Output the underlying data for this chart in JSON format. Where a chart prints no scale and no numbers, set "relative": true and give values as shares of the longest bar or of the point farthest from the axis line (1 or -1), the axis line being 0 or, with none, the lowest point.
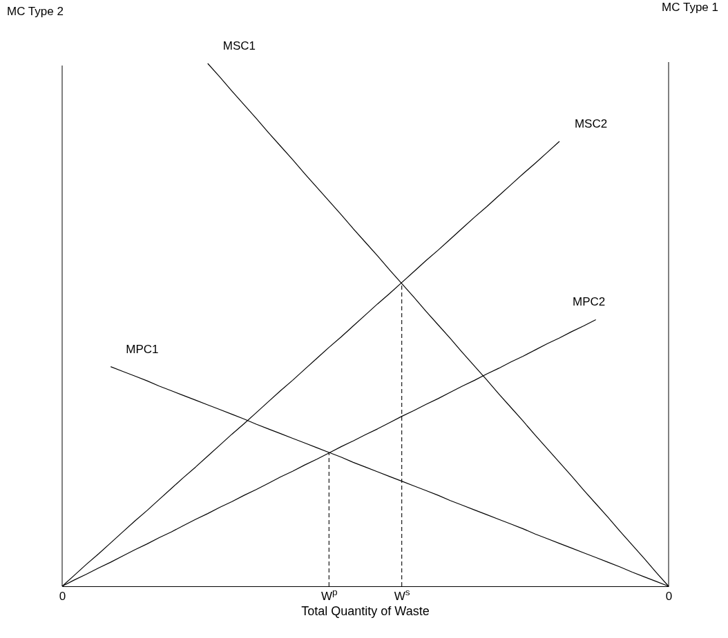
{
  "chart_data": {
    "type": "line",
    "relative": true,
    "xlabel": "Total Quantity of Waste",
    "ylabel": "MC Type 2",
    "y2label": "MC Type 1",
    "categories": [
      "0",
      null,
      null,
      null,
      null,
      null,
      null,
      null,
      null,
      null,
      null,
      null,
      null,
      null,
      null,
      null,
      null,
      null,
      null,
      null,
      null,
      null,
      "W$^{p}$",
      null,
      null,
      null,
      null,
      null,
      "W$^{s}$",
      null,
      null,
      null,
      null,
      null,
      null,
      null,
      null,
      null,
      null,
      null,
      null,
      null,
      null,
      null,
      null,
      null,
      null,
      null,
      null,
      null,
      "0"
    ],
    "series": [
      {
        "name": "MSC1",
        "color": "#000000",
        "values": [
          null,
          null,
          null,
          null,
          null,
          null,
          null,
          null,
          null,
          null,
          null,
          null,
          1,
          0.974,
          0.947,
          0.921,
          0.895,
          0.868,
          0.842,
          0.816,
          0.789,
          0.763,
          0.737,
          0.711,
          0.684,
          0.658,
          0.632,
          0.605,
          0.579,
          0.553,
          0.526,
          0.5,
          0.474,
          0.447,
          0.421,
          0.395,
          0.368,
          0.342,
          0.316,
          0.289,
          0.263,
          0.237,
          0.211,
          0.184,
          0.158,
          0.132,
          0.105,
          0.079,
          0.053,
          0.026,
          0
        ]
      },
      {
        "name": "MSC2",
        "color": "#000000",
        "values": [
          0,
          0.021,
          0.042,
          0.062,
          0.083,
          0.104,
          0.125,
          0.145,
          0.166,
          0.187,
          0.208,
          0.228,
          0.249,
          0.27,
          0.291,
          0.311,
          0.332,
          0.353,
          0.374,
          0.394,
          0.415,
          0.436,
          0.457,
          0.477,
          0.498,
          0.519,
          0.54,
          0.56,
          0.581,
          0.602,
          0.623,
          0.643,
          0.664,
          0.685,
          0.706,
          0.726,
          0.747,
          0.768,
          0.789,
          0.809,
          0.83,
          0.851,
          null,
          null,
          null,
          null,
          null,
          null,
          null,
          null,
          null
        ]
      },
      {
        "name": "MPC2",
        "color": "#000000",
        "values": [
          0,
          0.012,
          0.023,
          0.035,
          0.046,
          0.058,
          0.07,
          0.081,
          0.093,
          0.104,
          0.116,
          0.128,
          0.139,
          0.151,
          0.162,
          0.174,
          0.185,
          0.197,
          0.209,
          0.22,
          0.232,
          0.243,
          0.255,
          0.267,
          0.278,
          0.29,
          0.301,
          0.313,
          0.325,
          0.336,
          0.348,
          0.359,
          0.371,
          0.383,
          0.394,
          0.406,
          0.417,
          0.429,
          0.44,
          0.452,
          0.464,
          0.475,
          0.487,
          0.498,
          0.51,
          null,
          null,
          null,
          null,
          null,
          null
        ]
      },
      {
        "name": "MPC1",
        "color": "#000000",
        "values": [
          null,
          null,
          null,
          null,
          0.42,
          0.411,
          0.402,
          0.393,
          0.383,
          0.374,
          0.365,
          0.356,
          0.347,
          0.338,
          0.329,
          0.32,
          0.31,
          0.301,
          0.292,
          0.283,
          0.274,
          0.265,
          0.256,
          0.247,
          0.237,
          0.228,
          0.219,
          0.21,
          0.201,
          0.192,
          0.183,
          0.174,
          0.164,
          0.155,
          0.146,
          0.137,
          0.128,
          0.119,
          0.11,
          0.1,
          0.091,
          0.082,
          0.073,
          0.064,
          0.055,
          0.046,
          0.037,
          0.027,
          0.018,
          0.009,
          0
        ]
      }
    ],
    "ref_lines": [
      {
        "axis": "x",
        "value": "W$^{p}$",
        "line_style": "dashed",
        "color": "#000000"
      },
      {
        "axis": "x",
        "value": "W$^{s}$",
        "line_style": "dashed",
        "color": "#000000"
      }
    ]
  }
}
